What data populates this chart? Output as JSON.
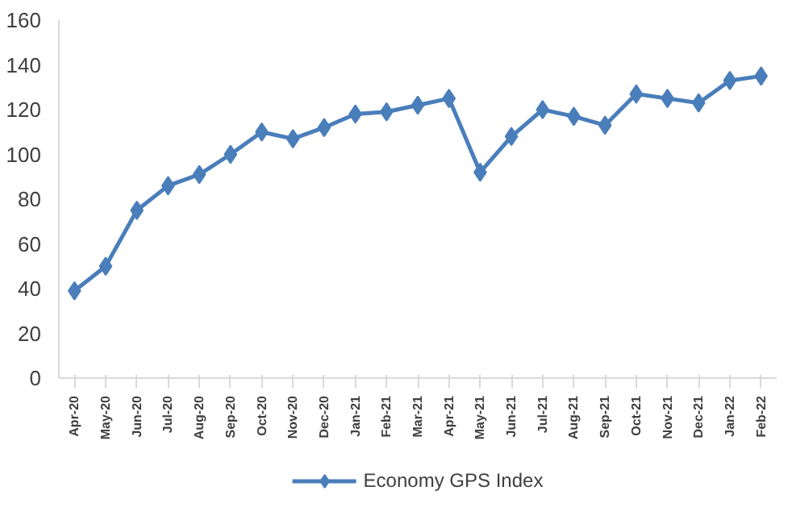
{
  "chart_data": {
    "type": "line",
    "categories": [
      "Apr-20",
      "May-20",
      "Jun-20",
      "Jul-20",
      "Aug-20",
      "Sep-20",
      "Oct-20",
      "Nov-20",
      "Dec-20",
      "Jan-21",
      "Feb-21",
      "Mar-21",
      "Apr-21",
      "May-21",
      "Jun-21",
      "Jul-21",
      "Aug-21",
      "Sep-21",
      "Oct-21",
      "Nov-21",
      "Dec-21",
      "Jan-22",
      "Feb-22"
    ],
    "series": [
      {
        "name": "Economy GPS Index",
        "color": "#4a7ebb",
        "values": [
          39,
          50,
          75,
          86,
          91,
          100,
          110,
          107,
          112,
          118,
          119,
          122,
          125,
          92,
          108,
          120,
          117,
          113,
          127,
          125,
          123,
          133,
          135
        ]
      }
    ],
    "ylim": [
      0,
      160
    ],
    "yticks": [
      0,
      20,
      40,
      60,
      80,
      100,
      120,
      140,
      160
    ],
    "grid": false,
    "legend": "bottom",
    "marker": "diamond",
    "line_style": "solid"
  }
}
